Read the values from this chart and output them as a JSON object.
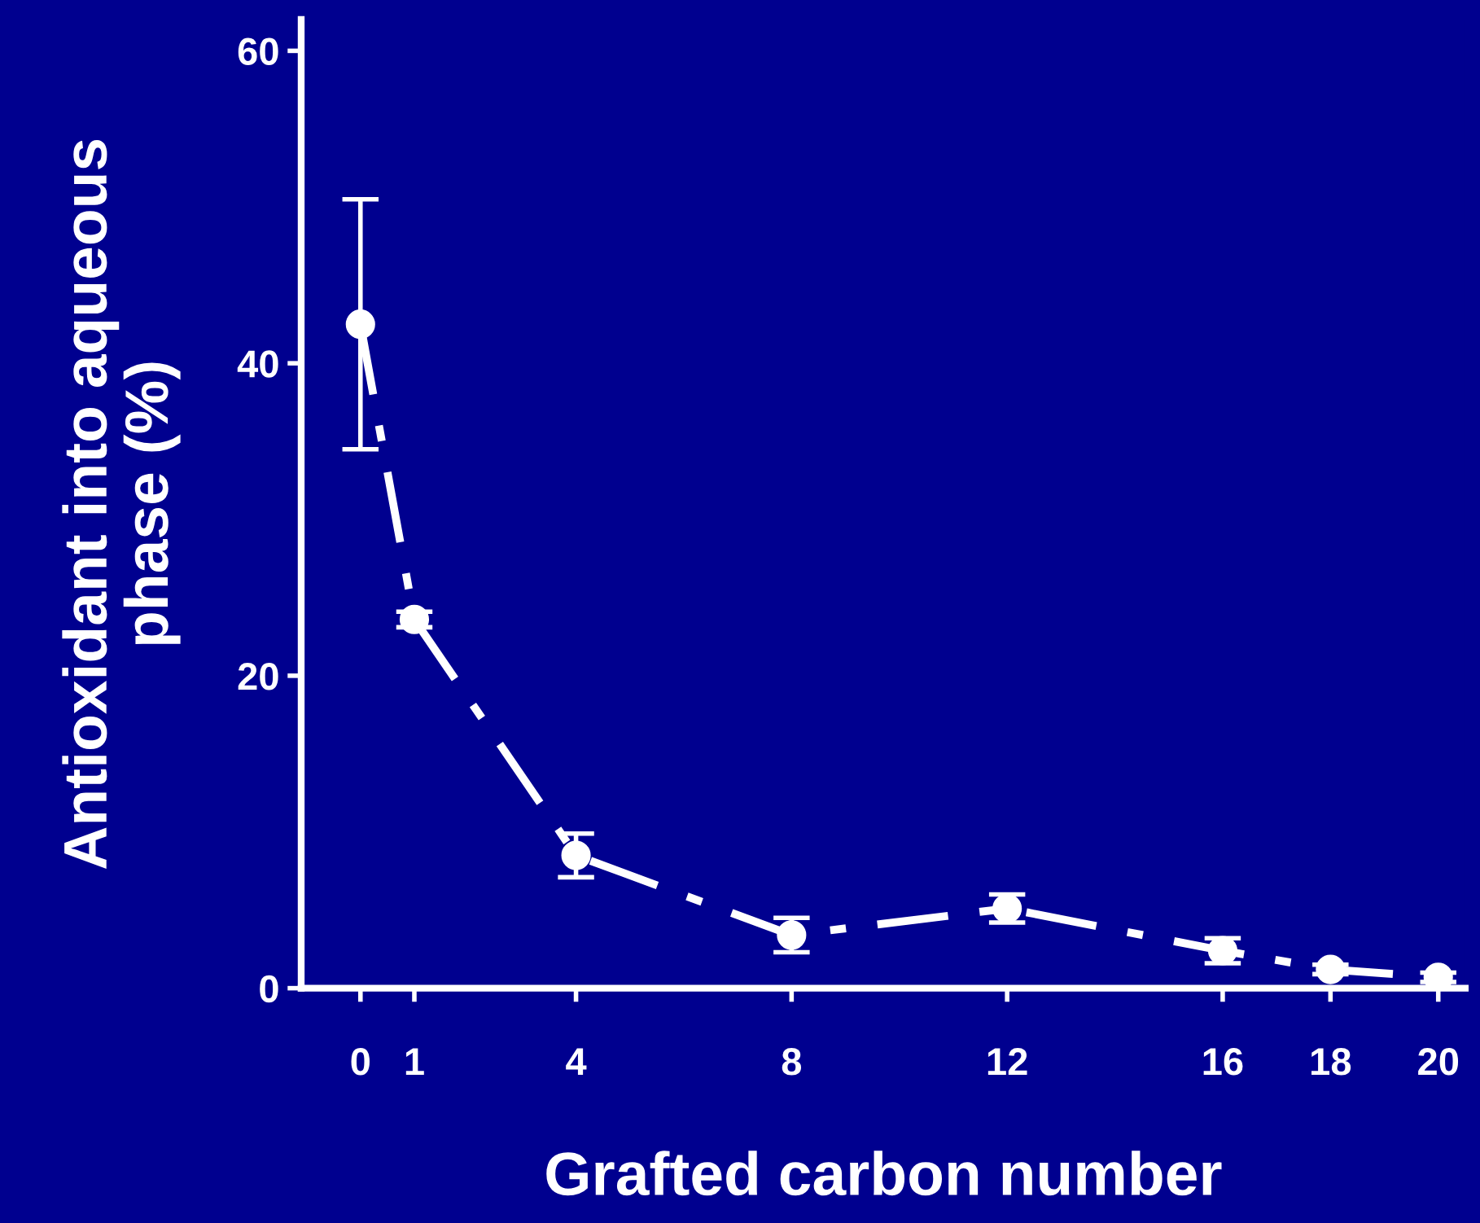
{
  "chart_data": {
    "type": "line",
    "xlabel": "Grafted carbon number",
    "ylabel": "Antioxidant into aqueous\nphase (%)",
    "x": [
      0,
      1,
      4,
      8,
      12,
      16,
      18,
      20
    ],
    "series": [
      {
        "color": "#ffffff",
        "values": [
          42.5,
          23.6,
          8.5,
          3.4,
          5.1,
          2.4,
          1.2,
          0.7
        ],
        "errors": [
          8,
          0.5,
          1.4,
          1.1,
          0.9,
          0.8,
          0.3,
          0.3
        ]
      }
    ],
    "xlim": [
      -1.1,
      20.5
    ],
    "xticks": [
      0,
      1,
      4,
      8,
      12,
      16,
      18,
      20
    ],
    "ylim": [
      0,
      62
    ],
    "yticks": [
      0,
      20,
      40,
      60
    ],
    "marker": "circle",
    "line_style": "dashdot",
    "grid": false,
    "legend": false
  }
}
